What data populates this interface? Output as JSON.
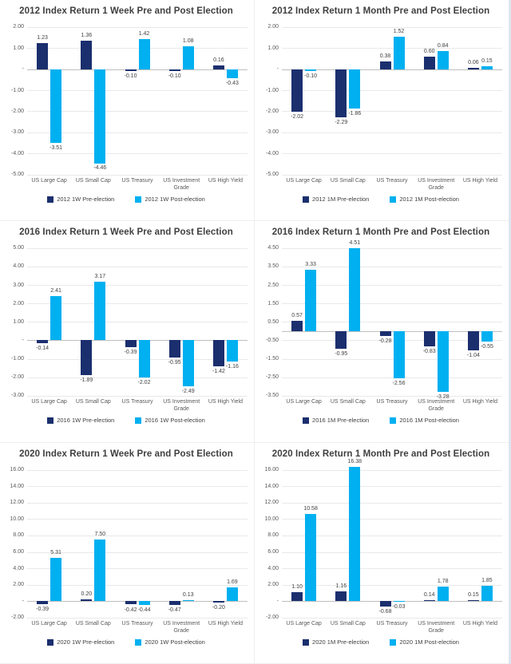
{
  "page": {
    "background": "#ffffff"
  },
  "colors": {
    "pre": "#1b2f6e",
    "post": "#00b0f0",
    "grid": "#e9e9e9",
    "zero_axis": "#bfbfbf",
    "title_text": "#3f3f3f",
    "tick_text": "#595959",
    "value_text": "#3f3f3f"
  },
  "zero_tick_label": "-",
  "chart_data": [
    {
      "type": "bar",
      "title": "2012 Index Return 1 Week Pre and Post Election",
      "categories": [
        "US Large Cap",
        "US Small Cap",
        "US Treasury",
        "US Investment Grade",
        "US High Yield"
      ],
      "series": [
        {
          "name": "2012 1W Pre-election",
          "role": "pre",
          "values": [
            1.23,
            1.36,
            -0.1,
            -0.1,
            0.16
          ]
        },
        {
          "name": "2012 1W Post-election",
          "role": "post",
          "values": [
            -3.51,
            -4.46,
            1.42,
            1.08,
            -0.43
          ]
        }
      ],
      "ylim": [
        -5,
        2
      ],
      "yticks": [
        2,
        1,
        0,
        -1,
        -2,
        -3,
        -4,
        -5
      ],
      "grid": true,
      "legend_position": "bottom"
    },
    {
      "type": "bar",
      "title": "2012 Index Return 1 Month  Pre and Post Election",
      "categories": [
        "US Large Cap",
        "US Small Cap",
        "US Treasury",
        "US Investment Grade",
        "US High Yield"
      ],
      "series": [
        {
          "name": "2012 1M Pre-election",
          "role": "pre",
          "values": [
            -2.02,
            -2.29,
            0.38,
            0.6,
            0.06
          ]
        },
        {
          "name": "2012 1M Post-election",
          "role": "post",
          "values": [
            -0.1,
            -1.86,
            1.52,
            0.84,
            0.15
          ]
        }
      ],
      "ylim": [
        -5,
        2
      ],
      "yticks": [
        2,
        1,
        0,
        -1,
        -2,
        -3,
        -4,
        -5
      ],
      "grid": true,
      "legend_position": "bottom"
    },
    {
      "type": "bar",
      "title": "2016 Index Return 1 Week Pre and Post Election",
      "categories": [
        "US Large Cap",
        "US Small Cap",
        "US Treasury",
        "US Investment Grade",
        "US High Yield"
      ],
      "series": [
        {
          "name": "2016 1W Pre-election",
          "role": "pre",
          "values": [
            -0.14,
            -1.89,
            -0.39,
            -0.95,
            -1.42
          ]
        },
        {
          "name": "2016 1W Post-election",
          "role": "post",
          "values": [
            2.41,
            3.17,
            -2.02,
            -2.49,
            -1.16
          ]
        }
      ],
      "ylim": [
        -3,
        5
      ],
      "yticks": [
        5,
        4,
        3,
        2,
        1,
        0,
        -1,
        -2,
        -3
      ],
      "grid": true,
      "legend_position": "bottom"
    },
    {
      "type": "bar",
      "title": "2016 Index Return 1 Month Pre and Post Election",
      "categories": [
        "US Large Cap",
        "US Small Cap",
        "US Treasury",
        "US Investment Grade",
        "US High Yield"
      ],
      "series": [
        {
          "name": "2016 1M Pre-election",
          "role": "pre",
          "values": [
            0.57,
            -0.95,
            -0.28,
            -0.83,
            -1.04
          ]
        },
        {
          "name": "2016 1M Post-election",
          "role": "post",
          "values": [
            3.33,
            4.51,
            -2.56,
            -3.28,
            -0.55
          ]
        }
      ],
      "ylim": [
        -3.5,
        4.5
      ],
      "yticks": [
        4.5,
        3.5,
        2.5,
        1.5,
        0.5,
        -0.5,
        -1.5,
        -2.5,
        -3.5
      ],
      "grid": true,
      "legend_position": "bottom"
    },
    {
      "type": "bar",
      "title": "2020 Index Return 1 Week Pre and Post Election",
      "categories": [
        "US Large Cap",
        "US Small Cap",
        "US Treasury",
        "US Investment Grade",
        "US High Yield"
      ],
      "series": [
        {
          "name": "2020 1W Pre-election",
          "role": "pre",
          "values": [
            -0.39,
            0.2,
            -0.42,
            -0.47,
            -0.2
          ]
        },
        {
          "name": "2020 1W Post-election",
          "role": "post",
          "values": [
            5.31,
            7.5,
            -0.44,
            0.13,
            1.69
          ]
        }
      ],
      "ylim": [
        -2,
        16
      ],
      "yticks": [
        16,
        14,
        12,
        10,
        8,
        6,
        4,
        2,
        0,
        -2
      ],
      "grid": true,
      "legend_position": "bottom"
    },
    {
      "type": "bar",
      "title": "2020 Index Return 1 Month Pre and Post Election",
      "categories": [
        "US Large Cap",
        "US Small Cap",
        "US Treasury",
        "US Investment Grade",
        "US High Yield"
      ],
      "series": [
        {
          "name": "2020 1M Pre-election",
          "role": "pre",
          "values": [
            1.1,
            1.16,
            -0.68,
            0.14,
            0.15
          ]
        },
        {
          "name": "2020 1M Post-election",
          "role": "post",
          "values": [
            10.58,
            16.38,
            -0.03,
            1.78,
            1.85
          ]
        }
      ],
      "ylim": [
        -2,
        16
      ],
      "yticks": [
        16,
        14,
        12,
        10,
        8,
        6,
        4,
        2,
        0,
        -2
      ],
      "grid": true,
      "legend_position": "bottom"
    }
  ]
}
